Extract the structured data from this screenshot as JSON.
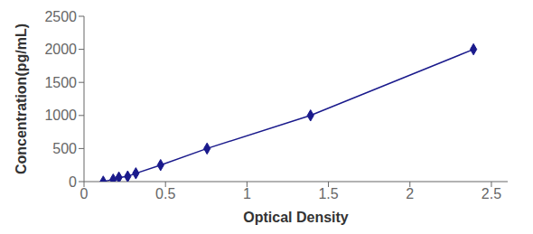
{
  "chart_data": {
    "type": "line",
    "xlabel": "Optical Density",
    "ylabel": "Concentration(pg/mL)",
    "x": [
      0.118,
      0.179,
      0.214,
      0.268,
      0.318,
      0.47,
      0.755,
      1.39,
      2.39
    ],
    "values": [
      0,
      31.25,
      62.5,
      78.125,
      125,
      250,
      500,
      1000,
      2000
    ],
    "color": "#1a1a8c",
    "marker": "diamond",
    "line_style": "solid",
    "xlim": [
      0.0,
      2.6
    ],
    "ylim": [
      0,
      2500
    ],
    "xticks": [
      0,
      0.5,
      1,
      1.5,
      2,
      2.5
    ],
    "yticks": [
      0,
      500,
      1000,
      1500,
      2000,
      2500
    ],
    "grid": false
  }
}
